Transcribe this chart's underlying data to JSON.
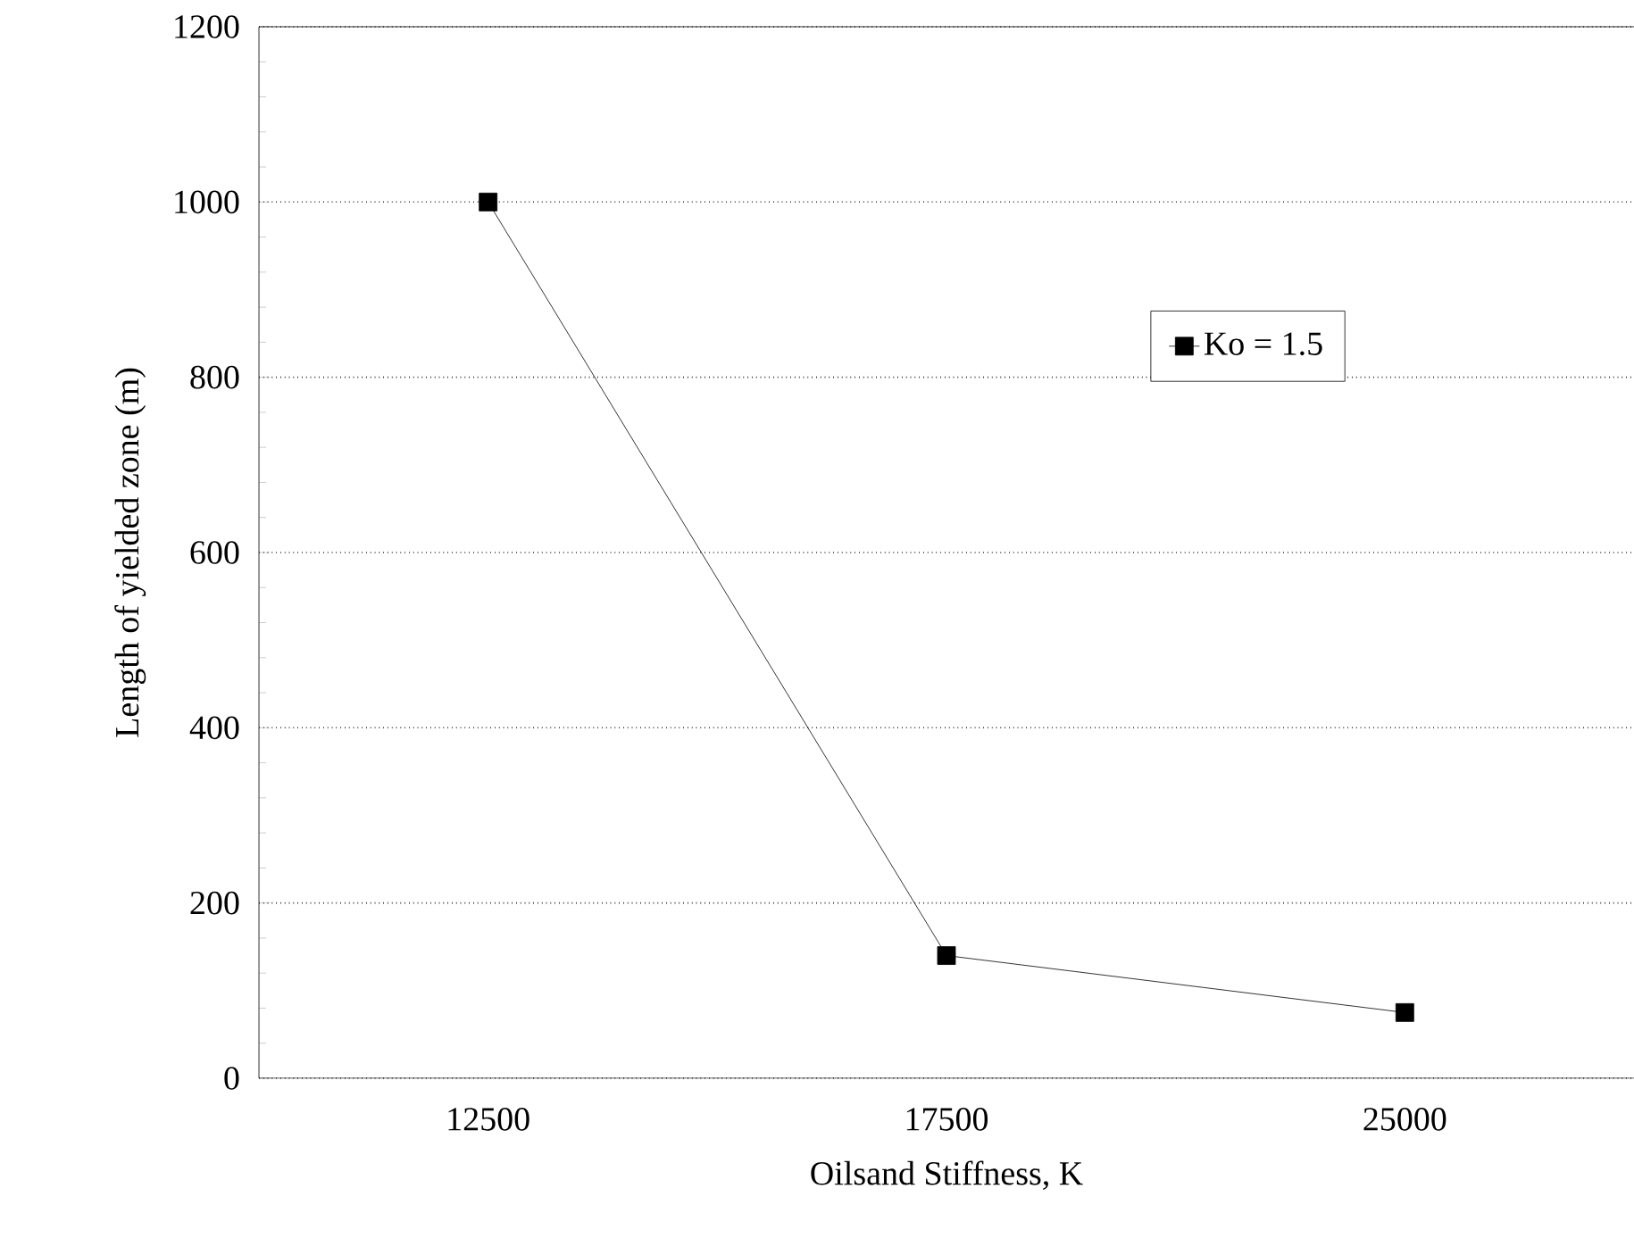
{
  "chart_data": {
    "type": "line",
    "xlabel": "Oilsand Stiffness, K",
    "ylabel": "Length of yielded zone (m)",
    "categories": [
      "12500",
      "17500",
      "25000"
    ],
    "series": [
      {
        "name": "Ko = 1.5",
        "color": "#000000",
        "values": [
          1000,
          140,
          75
        ]
      }
    ],
    "ylim": [
      0,
      1200
    ],
    "yticks": [
      0,
      200,
      400,
      600,
      800,
      1000,
      1200
    ],
    "grid": "y",
    "legend": "top right",
    "marker": "square",
    "line_style": "solid"
  }
}
